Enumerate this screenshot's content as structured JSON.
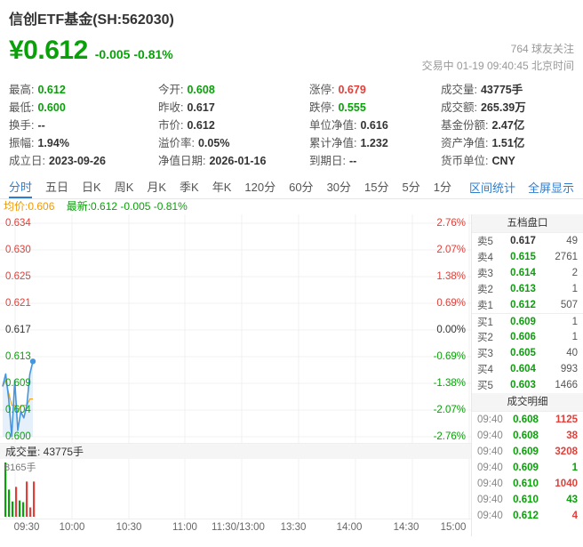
{
  "header": {
    "title": "信创ETF基金(SH:562030)",
    "price": "¥0.612",
    "change": "-0.005 -0.81%",
    "followers": "764 球友关注",
    "status_line": "交易中 01-19 09:40:45 北京时间"
  },
  "stats": {
    "cells": [
      {
        "label": "最高:",
        "value": "0.612",
        "tone": "down"
      },
      {
        "label": "今开:",
        "value": "0.608",
        "tone": "down"
      },
      {
        "label": "涨停:",
        "value": "0.679",
        "tone": "up"
      },
      {
        "label": "成交量:",
        "value": "43775手",
        "tone": "dark"
      },
      {
        "label": "最低:",
        "value": "0.600",
        "tone": "down"
      },
      {
        "label": "昨收:",
        "value": "0.617",
        "tone": "dark"
      },
      {
        "label": "跌停:",
        "value": "0.555",
        "tone": "down"
      },
      {
        "label": "成交额:",
        "value": "265.39万",
        "tone": "dark"
      },
      {
        "label": "换手:",
        "value": "--",
        "tone": "dark"
      },
      {
        "label": "市价:",
        "value": "0.612",
        "tone": "dark"
      },
      {
        "label": "单位净值:",
        "value": "0.616",
        "tone": "dark"
      },
      {
        "label": "基金份额:",
        "value": "2.47亿",
        "tone": "dark"
      },
      {
        "label": "振幅:",
        "value": "1.94%",
        "tone": "dark"
      },
      {
        "label": "溢价率:",
        "value": "0.05%",
        "tone": "dark"
      },
      {
        "label": "累计净值:",
        "value": "1.232",
        "tone": "dark"
      },
      {
        "label": "资产净值:",
        "value": "1.51亿",
        "tone": "dark"
      },
      {
        "label": "成立日:",
        "value": "2023-09-26",
        "tone": "dark"
      },
      {
        "label": "净值日期:",
        "value": "2026-01-16",
        "tone": "dark"
      },
      {
        "label": "到期日:",
        "value": "--",
        "tone": "dark"
      },
      {
        "label": "货币单位:",
        "value": "CNY",
        "tone": "dark"
      }
    ]
  },
  "tabs": {
    "items": [
      {
        "label": "分时",
        "active": true
      },
      {
        "label": "五日",
        "active": false
      },
      {
        "label": "日K",
        "active": false
      },
      {
        "label": "周K",
        "active": false
      },
      {
        "label": "月K",
        "active": false
      },
      {
        "label": "季K",
        "active": false
      },
      {
        "label": "年K",
        "active": false
      },
      {
        "label": "120分",
        "active": false
      },
      {
        "label": "60分",
        "active": false
      },
      {
        "label": "30分",
        "active": false
      },
      {
        "label": "15分",
        "active": false
      },
      {
        "label": "5分",
        "active": false
      },
      {
        "label": "1分",
        "active": false
      }
    ],
    "right_links": [
      "区间统计",
      "全屏显示"
    ]
  },
  "legend": {
    "avg": "均价:0.606",
    "latest": "最新:0.612 -0.005 -0.81%"
  },
  "chart_data": {
    "type": "line",
    "title": "分时图 intraday price of 信创ETF基金 (SH:562030)",
    "x": [
      "09:30",
      "09:31",
      "09:32",
      "09:33",
      "09:34",
      "09:35",
      "09:36",
      "09:37",
      "09:38",
      "09:39",
      "09:40"
    ],
    "series": [
      {
        "name": "最新价",
        "values": [
          0.608,
          0.61,
          0.606,
          0.6,
          0.609,
          0.601,
          0.604,
          0.603,
          0.605,
          0.61,
          0.612
        ]
      },
      {
        "name": "均价",
        "values": [
          0.608,
          0.609,
          0.607,
          0.605,
          0.605,
          0.604,
          0.605,
          0.605,
          0.605,
          0.606,
          0.606
        ]
      }
    ],
    "prev_close": 0.617,
    "ylim": [
      0.6,
      0.634
    ],
    "grid": true,
    "legend_position": "top-left",
    "y_axis_left": [
      {
        "label": "0.634",
        "tone": "up"
      },
      {
        "label": "0.630",
        "tone": "up"
      },
      {
        "label": "0.625",
        "tone": "up"
      },
      {
        "label": "0.621",
        "tone": "up"
      },
      {
        "label": "0.617",
        "tone": "flat"
      },
      {
        "label": "0.613",
        "tone": "down"
      },
      {
        "label": "0.609",
        "tone": "down"
      },
      {
        "label": "0.604",
        "tone": "down"
      },
      {
        "label": "0.600",
        "tone": "down"
      }
    ],
    "y_axis_right": [
      {
        "label": "2.76%",
        "tone": "up"
      },
      {
        "label": "2.07%",
        "tone": "up"
      },
      {
        "label": "1.38%",
        "tone": "up"
      },
      {
        "label": "0.69%",
        "tone": "up"
      },
      {
        "label": "0.00%",
        "tone": "flat"
      },
      {
        "label": "-0.69%",
        "tone": "down"
      },
      {
        "label": "-1.38%",
        "tone": "down"
      },
      {
        "label": "-2.07%",
        "tone": "down"
      },
      {
        "label": "-2.76%",
        "tone": "down"
      }
    ],
    "x_axis_labels": [
      "09:30",
      "10:00",
      "10:30",
      "11:00",
      "11:30/13:00",
      "13:30",
      "14:00",
      "14:30",
      "15:00"
    ],
    "volume_pane": {
      "header": "成交量: 43775手",
      "max_label": "8165手",
      "bars": [
        {
          "value": 8165,
          "dir": "down"
        },
        {
          "value": 4100,
          "dir": "down"
        },
        {
          "value": 2300,
          "dir": "down"
        },
        {
          "value": 4500,
          "dir": "up"
        },
        {
          "value": 2450,
          "dir": "down"
        },
        {
          "value": 2200,
          "dir": "down"
        },
        {
          "value": 5300,
          "dir": "up"
        },
        {
          "value": 1400,
          "dir": "up"
        },
        {
          "value": 5300,
          "dir": "up"
        }
      ]
    },
    "colors": {
      "up": "#e0403a",
      "down": "#0aa00a",
      "line": "#4596e0",
      "avg_line": "#f39800"
    }
  },
  "order_book": {
    "title": "五档盘口",
    "rows": [
      {
        "side": "卖5",
        "price": "0.617",
        "qty": "49",
        "price_tone": "dark"
      },
      {
        "side": "卖4",
        "price": "0.615",
        "qty": "2761",
        "price_tone": "down"
      },
      {
        "side": "卖3",
        "price": "0.614",
        "qty": "2",
        "price_tone": "down"
      },
      {
        "side": "卖2",
        "price": "0.613",
        "qty": "1",
        "price_tone": "down"
      },
      {
        "side": "卖1",
        "price": "0.612",
        "qty": "507",
        "price_tone": "down"
      },
      {
        "side": "买1",
        "price": "0.609",
        "qty": "1",
        "price_tone": "down"
      },
      {
        "side": "买2",
        "price": "0.606",
        "qty": "1",
        "price_tone": "down"
      },
      {
        "side": "买3",
        "price": "0.605",
        "qty": "40",
        "price_tone": "down"
      },
      {
        "side": "买4",
        "price": "0.604",
        "qty": "993",
        "price_tone": "down"
      },
      {
        "side": "买5",
        "price": "0.603",
        "qty": "1466",
        "price_tone": "down"
      }
    ]
  },
  "transactions": {
    "title": "成交明细",
    "rows": [
      {
        "time": "09:40",
        "price": "0.608",
        "qty": "1125",
        "price_tone": "down",
        "qty_tone": "up"
      },
      {
        "time": "09:40",
        "price": "0.608",
        "qty": "38",
        "price_tone": "down",
        "qty_tone": "up"
      },
      {
        "time": "09:40",
        "price": "0.609",
        "qty": "3208",
        "price_tone": "down",
        "qty_tone": "up"
      },
      {
        "time": "09:40",
        "price": "0.609",
        "qty": "1",
        "price_tone": "down",
        "qty_tone": "down"
      },
      {
        "time": "09:40",
        "price": "0.610",
        "qty": "1040",
        "price_tone": "down",
        "qty_tone": "up"
      },
      {
        "time": "09:40",
        "price": "0.610",
        "qty": "43",
        "price_tone": "down",
        "qty_tone": "down"
      },
      {
        "time": "09:40",
        "price": "0.612",
        "qty": "4",
        "price_tone": "down",
        "qty_tone": "up"
      }
    ]
  }
}
